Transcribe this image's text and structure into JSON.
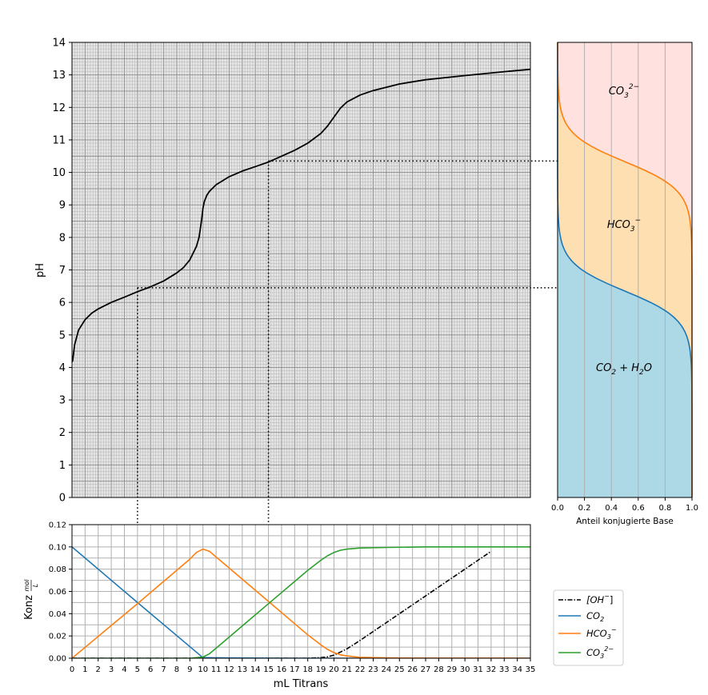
{
  "chart_data": [
    {
      "type": "line",
      "id": "titration",
      "ylabel": "pH",
      "xlim": [
        0,
        35
      ],
      "ylim": [
        0,
        14
      ],
      "yticks": [
        "0",
        "1",
        "2",
        "3",
        "4",
        "5",
        "6",
        "7",
        "8",
        "9",
        "10",
        "11",
        "12",
        "13",
        "14"
      ],
      "grid": true,
      "series": [
        {
          "color": "#000000",
          "x": [
            0,
            0.05,
            0.2,
            0.5,
            1,
            1.5,
            2,
            3,
            4,
            5,
            6,
            7,
            8,
            8.5,
            9,
            9.5,
            9.7,
            9.9,
            10,
            10.1,
            10.3,
            10.5,
            11,
            12,
            13,
            14,
            15,
            16,
            17,
            18,
            19,
            19.5,
            20,
            20.5,
            21,
            22,
            23,
            25,
            27,
            30,
            33,
            35
          ],
          "y": [
            4.17,
            4.2,
            4.7,
            5.15,
            5.47,
            5.67,
            5.8,
            6.0,
            6.16,
            6.33,
            6.48,
            6.66,
            6.91,
            7.07,
            7.31,
            7.72,
            8.0,
            8.55,
            8.9,
            9.1,
            9.3,
            9.42,
            9.62,
            9.87,
            10.04,
            10.18,
            10.32,
            10.5,
            10.68,
            10.9,
            11.2,
            11.42,
            11.7,
            11.98,
            12.17,
            12.38,
            12.52,
            12.72,
            12.85,
            12.98,
            13.1,
            13.17
          ]
        }
      ],
      "reference_lines": [
        {
          "x": 5,
          "y": 6.45
        },
        {
          "x": 15,
          "y": 10.35
        }
      ]
    },
    {
      "type": "area",
      "id": "fraction",
      "xlabel": "Anteil konjugierte Base",
      "xlim": [
        0,
        1
      ],
      "ylim": [
        0,
        14
      ],
      "xticks": [
        "0.0",
        "0.2",
        "0.4",
        "0.6",
        "0.8",
        "1.0"
      ],
      "pKa": [
        6.35,
        10.33
      ],
      "regions": [
        {
          "name": "CO_2 + H_2O",
          "label_main": "CO",
          "label_sub1": "2",
          "label_mid": " + H",
          "label_sub2": "2",
          "label_end": "O",
          "color": "#add8e6"
        },
        {
          "name": "HCO_3^-",
          "label_main": "HCO",
          "label_sub": "3",
          "label_sup": "−",
          "color": "#fedfb1"
        },
        {
          "name": "CO_3^2-",
          "label_main": "CO",
          "label_sub": "3",
          "label_sup": "2−",
          "color": "#ffe2e0"
        }
      ],
      "grid": true
    },
    {
      "type": "line",
      "id": "concentration",
      "xlabel": "mL Titrans",
      "ylabel": "Konz",
      "ylabel_unit_num": "mol",
      "ylabel_unit_den": "L",
      "xlim": [
        0,
        35
      ],
      "ylim": [
        0,
        0.12
      ],
      "xticks": [
        "0",
        "1",
        "2",
        "3",
        "4",
        "5",
        "6",
        "7",
        "8",
        "9",
        "10",
        "11",
        "12",
        "13",
        "14",
        "15",
        "16",
        "17",
        "18",
        "19",
        "20",
        "21",
        "22",
        "23",
        "24",
        "25",
        "26",
        "27",
        "28",
        "29",
        "30",
        "31",
        "32",
        "33",
        "34",
        "35"
      ],
      "yticks": [
        "0.00",
        "0.02",
        "0.04",
        "0.06",
        "0.08",
        "0.10",
        "0.12"
      ],
      "grid": true,
      "legend_position": "right",
      "series": [
        {
          "name": "[OH⁻]",
          "label_main": "[OH",
          "label_sup": "−",
          "label_end": "]",
          "color": "#000000",
          "dash": "dashdot",
          "x": [
            0,
            18,
            19,
            19.5,
            20,
            20.5,
            21,
            22,
            23,
            24,
            25,
            26,
            27,
            28,
            29,
            30,
            31,
            32
          ],
          "y": [
            0,
            0,
            0.0005,
            0.0012,
            0.0028,
            0.0055,
            0.0085,
            0.016,
            0.024,
            0.032,
            0.04,
            0.048,
            0.056,
            0.064,
            0.072,
            0.08,
            0.088,
            0.096
          ]
        },
        {
          "name": "CO_2",
          "label_main": "CO",
          "label_sub": "2",
          "color": "#1f77b4",
          "x": [
            0,
            5,
            10,
            12,
            15,
            18,
            20,
            35
          ],
          "y": [
            0.1,
            0.05,
            0.0005,
            0.0002,
            0.0001,
            0,
            0,
            0
          ]
        },
        {
          "name": "HCO_3^-",
          "label_main": "HCO",
          "label_sub": "3",
          "label_sup": "−",
          "color": "#ff7f0e",
          "x": [
            0,
            5,
            9,
            9.5,
            10,
            10.5,
            11,
            15,
            18,
            19,
            19.5,
            20,
            20.5,
            21,
            22,
            24,
            27,
            35
          ],
          "y": [
            0,
            0.049,
            0.089,
            0.095,
            0.098,
            0.096,
            0.091,
            0.051,
            0.021,
            0.012,
            0.008,
            0.005,
            0.003,
            0.002,
            0.0008,
            0.0003,
            0.0001,
            0
          ]
        },
        {
          "name": "CO_3^2-",
          "label_main": "CO",
          "label_sub": "3",
          "label_sup": "2−",
          "color": "#2ca02c",
          "x": [
            0,
            9,
            10,
            10.5,
            11,
            15,
            18,
            19,
            19.5,
            20,
            20.5,
            21,
            22,
            24,
            27,
            35
          ],
          "y": [
            0,
            0,
            0.001,
            0.004,
            0.009,
            0.049,
            0.079,
            0.088,
            0.092,
            0.095,
            0.097,
            0.098,
            0.099,
            0.0995,
            0.1,
            0.1
          ]
        }
      ]
    }
  ]
}
